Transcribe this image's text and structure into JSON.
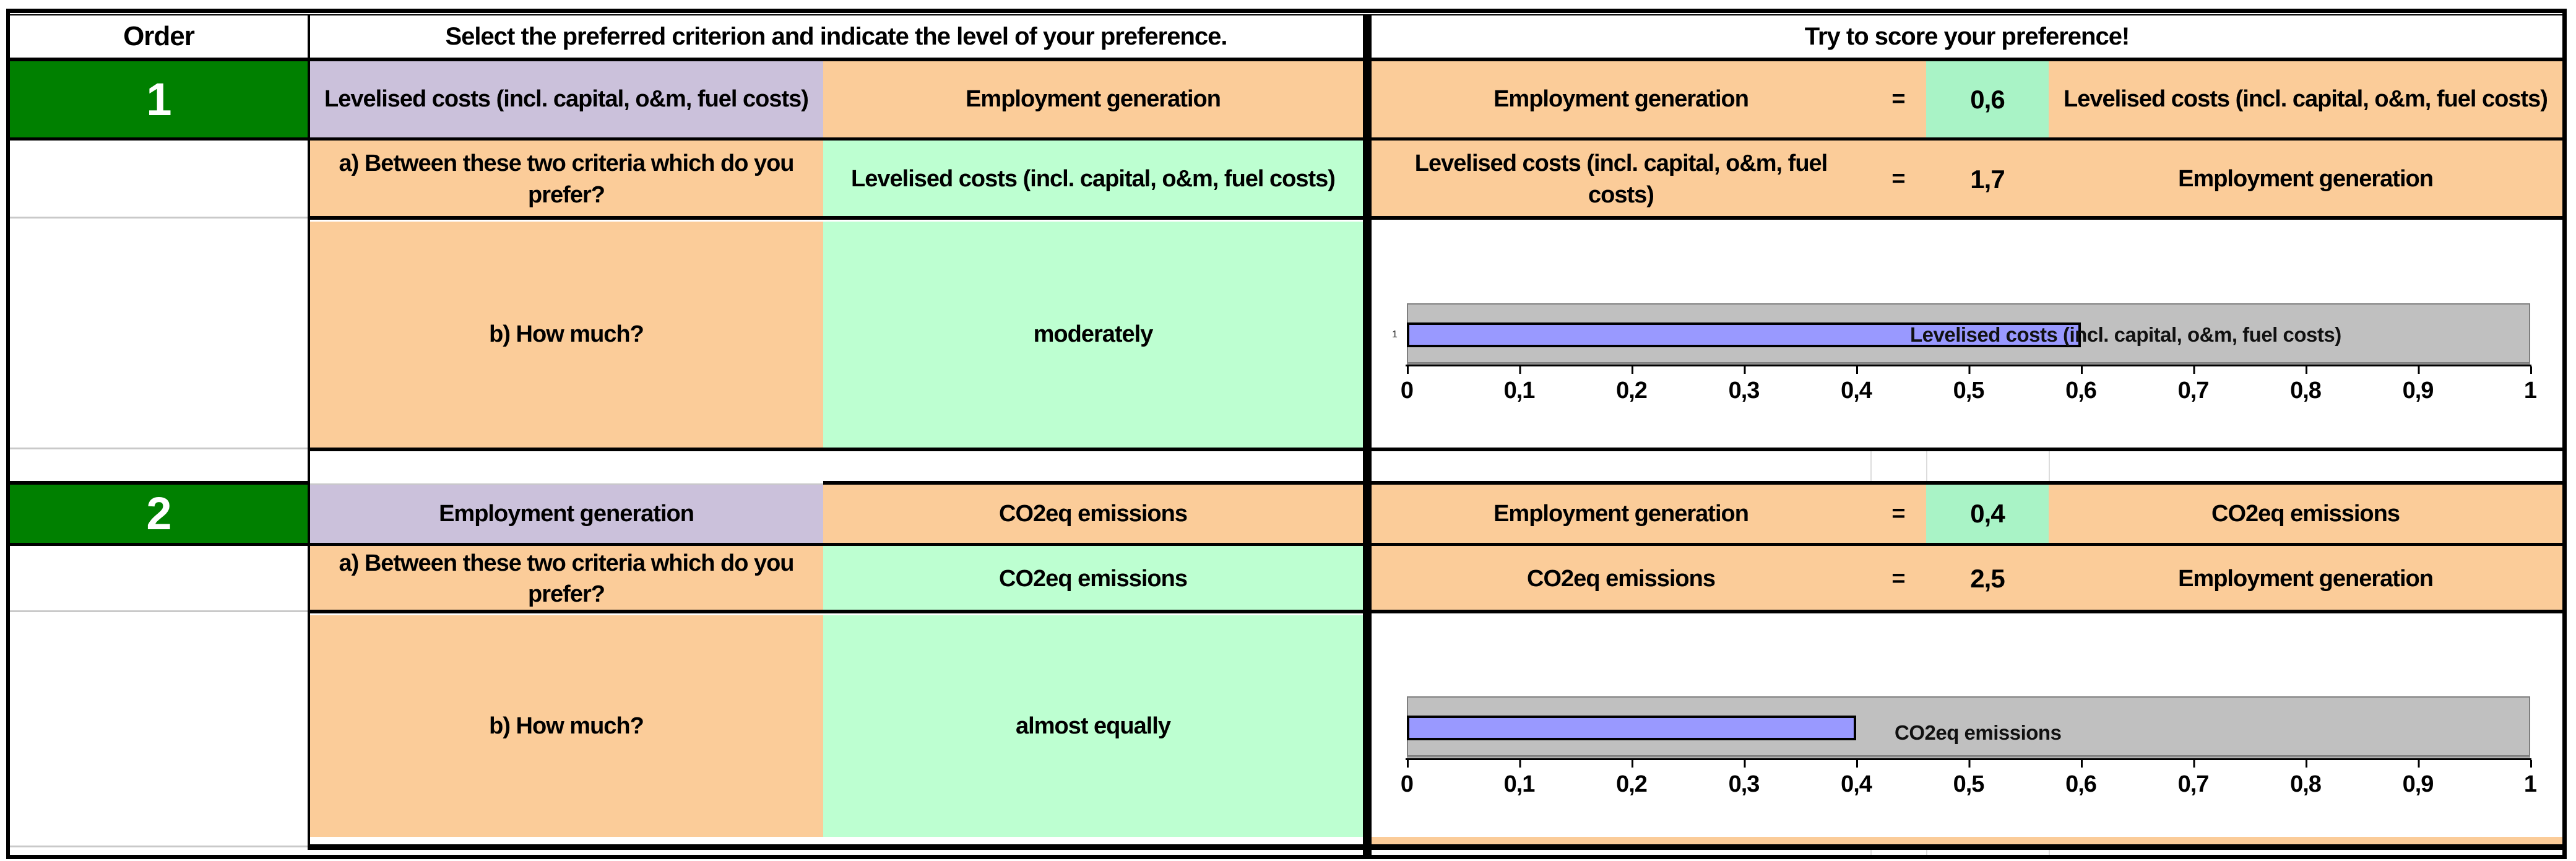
{
  "header": {
    "order": "Order",
    "middle": "Select the preferred criterion and indicate the level of your preference.",
    "right": "Try to score your preference!"
  },
  "colors": {
    "order_green": "#008000",
    "orange": "#FBCC99",
    "purple": "#CBC1DB",
    "select_green": "#BDFFD1",
    "value_green": "#A9F3C6",
    "bar_blue": "#9999FF",
    "bar_gray": "#C0C0C0"
  },
  "blocks": [
    {
      "order": "1",
      "criterion_left": "Levelised costs (incl. capital, o&m, fuel costs)",
      "criterion_right": "Employment generation",
      "question_a": "a) Between these two criteria which do you prefer?",
      "preferred": "Levelised costs (incl. capital, o&m, fuel costs)",
      "question_b": "b) How much?",
      "level": "moderately",
      "scores": [
        {
          "left": "Employment generation",
          "eq": "=",
          "value": "0,6",
          "right": "Levelised costs (incl. capital, o&m, fuel costs)"
        },
        {
          "left": "Levelised costs (incl. capital, o&m, fuel costs)",
          "eq": "=",
          "value": "1,7",
          "right": "Employment generation"
        }
      ]
    },
    {
      "order": "2",
      "criterion_left": "Employment generation",
      "criterion_right": "CO2eq emissions",
      "question_a": "a) Between these two criteria which do you prefer?",
      "preferred": "CO2eq emissions",
      "question_b": "b) How much?",
      "level": "almost equally",
      "scores": [
        {
          "left": "Employment generation",
          "eq": "=",
          "value": "0,4",
          "right": "CO2eq emissions"
        },
        {
          "left": "CO2eq emissions",
          "eq": "=",
          "value": "2,5",
          "right": "Employment generation"
        }
      ]
    }
  ],
  "chart_data": [
    {
      "type": "bar",
      "categories": [
        "1"
      ],
      "values": [
        0.6
      ],
      "track_value": 1,
      "bar_label": "Levelised costs (incl. capital, o&m, fuel costs)",
      "xlim": [
        0,
        1
      ],
      "xticks": [
        "0",
        "0,1",
        "0,2",
        "0,3",
        "0,4",
        "0,5",
        "0,6",
        "0,7",
        "0,8",
        "0,9",
        "1"
      ],
      "bar_color": "#9999FF",
      "track_color": "#C0C0C0",
      "legend": "none",
      "grid": "off"
    },
    {
      "type": "bar",
      "categories": [
        "1"
      ],
      "values": [
        0.4
      ],
      "track_value": 1,
      "bar_label": "CO2eq emissions",
      "xlim": [
        0,
        1
      ],
      "xticks": [
        "0",
        "0,1",
        "0,2",
        "0,3",
        "0,4",
        "0,5",
        "0,6",
        "0,7",
        "0,8",
        "0,9",
        "1"
      ],
      "bar_color": "#9999FF",
      "track_color": "#C0C0C0",
      "legend": "none",
      "grid": "off"
    }
  ]
}
